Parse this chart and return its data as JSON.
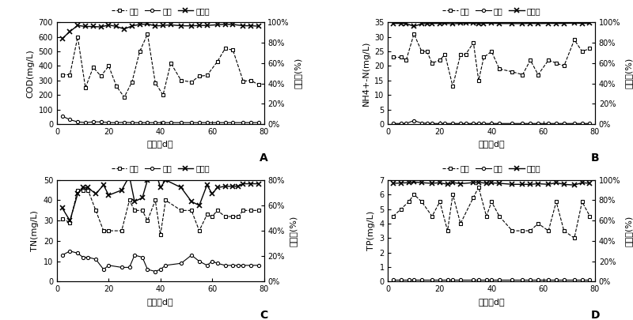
{
  "A": {
    "ylabel_left": "COD(mg/L)",
    "ylabel_right": "去除率(%)",
    "xlabel": "日期（d）",
    "label": "A",
    "ylim_left": [
      0,
      700
    ],
    "ylim_right": [
      0,
      1.0
    ],
    "yticks_left": [
      0,
      100,
      200,
      300,
      400,
      500,
      600,
      700
    ],
    "yticks_right": [
      0.0,
      0.2,
      0.4,
      0.6,
      0.8,
      1.0
    ],
    "influx_x": [
      2,
      5,
      8,
      11,
      14,
      17,
      20,
      23,
      26,
      29,
      32,
      35,
      38,
      41,
      44,
      48,
      52,
      55,
      58,
      62,
      65,
      68,
      72,
      75,
      78
    ],
    "influx_y": [
      340,
      340,
      600,
      250,
      390,
      330,
      400,
      260,
      185,
      290,
      500,
      620,
      285,
      200,
      420,
      300,
      290,
      330,
      335,
      430,
      520,
      510,
      295,
      300,
      270
    ],
    "outflux_x": [
      2,
      5,
      8,
      11,
      14,
      17,
      20,
      23,
      26,
      29,
      32,
      35,
      38,
      41,
      44,
      48,
      52,
      55,
      58,
      62,
      65,
      68,
      72,
      75,
      78
    ],
    "outflux_y": [
      55,
      30,
      15,
      10,
      15,
      15,
      10,
      10,
      12,
      10,
      10,
      10,
      10,
      10,
      10,
      10,
      10,
      10,
      10,
      10,
      10,
      10,
      10,
      10,
      10
    ],
    "removal_x": [
      2,
      5,
      8,
      11,
      14,
      17,
      20,
      23,
      26,
      29,
      32,
      35,
      38,
      41,
      44,
      48,
      52,
      55,
      58,
      62,
      65,
      68,
      72,
      75,
      78
    ],
    "removal_y": [
      0.84,
      0.91,
      0.97,
      0.96,
      0.96,
      0.955,
      0.975,
      0.96,
      0.935,
      0.965,
      0.98,
      0.984,
      0.965,
      0.97,
      0.976,
      0.967,
      0.966,
      0.97,
      0.97,
      0.977,
      0.981,
      0.98,
      0.967,
      0.967,
      0.963
    ]
  },
  "B": {
    "ylabel_left": "NH4+-N(mg/L)",
    "ylabel_right": "去除率(%)",
    "xlabel": "日期（d）",
    "label": "B",
    "ylim_left": [
      0,
      35
    ],
    "ylim_right": [
      0,
      1.0
    ],
    "yticks_left": [
      0,
      5,
      10,
      15,
      20,
      25,
      30,
      35
    ],
    "yticks_right": [
      0.0,
      0.2,
      0.4,
      0.6,
      0.8,
      1.0
    ],
    "influx_x": [
      2,
      5,
      7,
      10,
      13,
      15,
      17,
      20,
      22,
      25,
      28,
      30,
      33,
      35,
      37,
      40,
      43,
      48,
      52,
      55,
      58,
      62,
      65,
      68,
      72,
      75,
      78
    ],
    "influx_y": [
      23,
      23,
      22,
      31,
      25,
      25,
      21,
      22,
      24,
      13,
      24,
      24,
      28,
      15,
      23,
      25,
      19,
      18,
      17,
      22,
      17,
      22,
      21,
      20,
      29,
      25,
      26
    ],
    "outflux_x": [
      2,
      5,
      7,
      10,
      13,
      15,
      17,
      20,
      22,
      25,
      28,
      30,
      33,
      35,
      37,
      40,
      43,
      48,
      52,
      55,
      58,
      62,
      65,
      68,
      72,
      75,
      78
    ],
    "outflux_y": [
      0.2,
      0.2,
      0.2,
      1.2,
      0.3,
      0.3,
      0.2,
      0.2,
      0.2,
      0.2,
      0.2,
      0.2,
      0.2,
      0.2,
      0.2,
      0.2,
      0.2,
      0.2,
      0.2,
      0.2,
      0.2,
      0.2,
      0.2,
      0.2,
      0.2,
      0.2,
      0.2
    ],
    "removal_x": [
      2,
      5,
      7,
      10,
      13,
      15,
      17,
      20,
      22,
      25,
      28,
      30,
      33,
      35,
      37,
      40,
      43,
      48,
      52,
      55,
      58,
      62,
      65,
      68,
      72,
      75,
      78
    ],
    "removal_y": [
      0.99,
      0.99,
      0.99,
      0.96,
      0.988,
      0.988,
      0.99,
      0.99,
      0.992,
      0.985,
      0.992,
      0.992,
      0.993,
      0.987,
      0.991,
      0.992,
      0.989,
      0.989,
      0.988,
      0.991,
      0.988,
      0.991,
      0.99,
      0.99,
      0.993,
      0.99,
      0.992
    ]
  },
  "C": {
    "ylabel_left": "TN(mg/L)",
    "ylabel_right": "去除率(%)",
    "xlabel": "日期（d）",
    "label": "C",
    "ylim_left": [
      0,
      50
    ],
    "ylim_right": [
      0,
      0.8
    ],
    "yticks_left": [
      0,
      10,
      20,
      30,
      40,
      50
    ],
    "yticks_right": [
      0.0,
      0.2,
      0.4,
      0.6,
      0.8
    ],
    "influx_x": [
      2,
      5,
      8,
      10,
      12,
      15,
      18,
      20,
      25,
      28,
      30,
      33,
      35,
      38,
      40,
      42,
      48,
      52,
      55,
      58,
      60,
      62,
      65,
      68,
      70,
      72,
      75,
      78
    ],
    "influx_y": [
      31,
      29,
      45,
      45,
      45,
      35,
      25,
      25,
      25,
      40,
      35,
      35,
      30,
      40,
      23,
      40,
      35,
      35,
      25,
      33,
      32,
      35,
      32,
      32,
      32,
      35,
      35,
      35
    ],
    "outflux_x": [
      2,
      5,
      8,
      10,
      12,
      15,
      18,
      20,
      25,
      28,
      30,
      33,
      35,
      38,
      40,
      42,
      48,
      52,
      55,
      58,
      60,
      62,
      65,
      68,
      70,
      72,
      75,
      78
    ],
    "outflux_y": [
      13,
      15,
      14,
      12,
      12,
      11,
      6,
      8,
      7,
      7,
      13,
      12,
      6,
      5,
      6,
      8,
      9,
      13,
      10,
      8,
      10,
      9,
      8,
      8,
      8,
      8,
      8,
      8
    ],
    "removal_x": [
      2,
      5,
      8,
      10,
      12,
      15,
      18,
      20,
      25,
      28,
      30,
      33,
      35,
      38,
      40,
      42,
      48,
      52,
      55,
      58,
      60,
      62,
      65,
      68,
      70,
      72,
      75,
      78
    ],
    "removal_y": [
      0.58,
      0.48,
      0.69,
      0.74,
      0.74,
      0.69,
      0.76,
      0.68,
      0.72,
      0.83,
      0.63,
      0.66,
      0.8,
      0.875,
      0.74,
      0.8,
      0.74,
      0.63,
      0.6,
      0.76,
      0.69,
      0.74,
      0.75,
      0.75,
      0.75,
      0.77,
      0.77,
      0.77
    ]
  },
  "D": {
    "ylabel_left": "TP(mg/L)",
    "ylabel_right": "去除率(%)",
    "xlabel": "日期（d）",
    "label": "D",
    "ylim_left": [
      0,
      7
    ],
    "ylim_right": [
      0,
      1.0
    ],
    "yticks_left": [
      0,
      1,
      2,
      3,
      4,
      5,
      6,
      7
    ],
    "yticks_right": [
      0.0,
      0.2,
      0.4,
      0.6,
      0.8,
      1.0
    ],
    "influx_x": [
      2,
      5,
      8,
      10,
      13,
      17,
      20,
      23,
      25,
      28,
      33,
      35,
      38,
      40,
      43,
      48,
      52,
      55,
      58,
      62,
      65,
      68,
      72,
      75,
      78
    ],
    "influx_y": [
      4.5,
      5.0,
      5.5,
      6.0,
      5.5,
      4.5,
      5.5,
      3.5,
      6.0,
      4.0,
      5.8,
      6.5,
      4.5,
      5.5,
      4.5,
      3.5,
      3.5,
      3.5,
      4.0,
      3.5,
      5.5,
      3.5,
      3.0,
      5.5,
      4.5
    ],
    "outflux_x": [
      2,
      5,
      8,
      10,
      13,
      17,
      20,
      23,
      25,
      28,
      33,
      35,
      38,
      40,
      43,
      48,
      52,
      55,
      58,
      62,
      65,
      68,
      72,
      75,
      78
    ],
    "outflux_y": [
      0.15,
      0.15,
      0.15,
      0.15,
      0.15,
      0.15,
      0.15,
      0.15,
      0.15,
      0.15,
      0.15,
      0.15,
      0.15,
      0.15,
      0.15,
      0.15,
      0.15,
      0.15,
      0.15,
      0.15,
      0.15,
      0.15,
      0.15,
      0.15,
      0.15
    ],
    "removal_x": [
      2,
      5,
      8,
      10,
      13,
      17,
      20,
      23,
      25,
      28,
      33,
      35,
      38,
      40,
      43,
      48,
      52,
      55,
      58,
      62,
      65,
      68,
      72,
      75,
      78
    ],
    "removal_y": [
      0.967,
      0.97,
      0.973,
      0.979,
      0.973,
      0.967,
      0.973,
      0.957,
      0.975,
      0.963,
      0.974,
      0.977,
      0.967,
      0.971,
      0.967,
      0.957,
      0.957,
      0.957,
      0.963,
      0.957,
      0.973,
      0.957,
      0.95,
      0.973,
      0.967
    ]
  },
  "legend_labels": [
    "进水",
    "出水",
    "去除率"
  ],
  "influx_marker": "s",
  "outflux_marker": "o",
  "removal_marker": "x",
  "marker_size": 3,
  "fontsize": 8,
  "tick_fontsize": 7
}
